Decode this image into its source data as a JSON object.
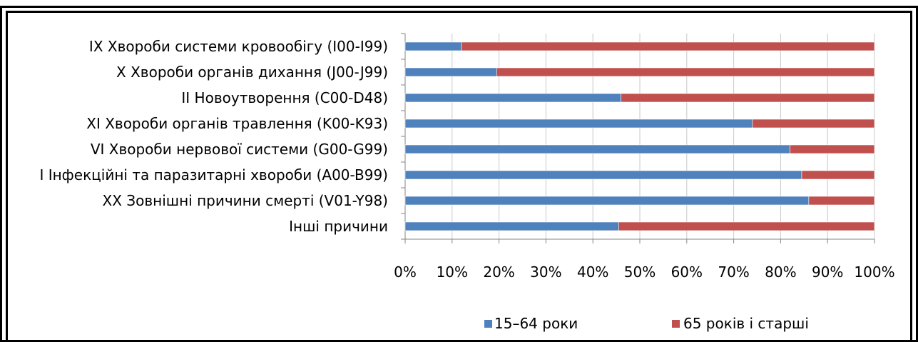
{
  "chart_data": {
    "type": "bar",
    "orientation": "horizontal",
    "stacked": "percent",
    "categories": [
      "IX Хвороби системи кровообігу (I00-I99)",
      "X Хвороби органів дихання (J00-J99)",
      "II Новоутворення (C00-D48)",
      "XI Хвороби органів травлення (K00-K93)",
      "VI Хвороби нервової системи (G00-G99)",
      "I Інфекційні та паразитарні хвороби (A00-B99)",
      "XX Зовнішні причини смерті (V01-Y98)",
      "Інші причини"
    ],
    "series": [
      {
        "name": "15–64 роки",
        "color": "#4F81BD",
        "values": [
          12,
          19.5,
          46,
          74,
          82,
          84.5,
          86,
          45.5
        ]
      },
      {
        "name": "65 років і старші",
        "color": "#C0504D",
        "values": [
          88,
          80.5,
          54,
          26,
          18,
          15.5,
          14,
          54.5
        ]
      }
    ],
    "xticks": [
      "0%",
      "10%",
      "20%",
      "30%",
      "40%",
      "50%",
      "60%",
      "70%",
      "80%",
      "90%",
      "100%"
    ],
    "xlim": [
      0,
      100
    ],
    "grid": "vertical",
    "legend": "bottom"
  }
}
